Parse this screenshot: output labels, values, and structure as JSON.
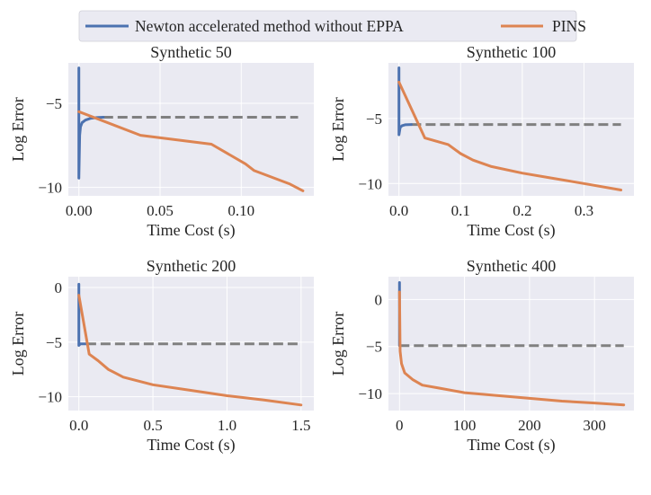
{
  "legend": {
    "placement": "top-center",
    "entries": [
      {
        "label": "Newton accelerated method without EPPA",
        "color": "#4c72b0"
      },
      {
        "label": "PINS",
        "color": "#dd8452"
      }
    ]
  },
  "colors": {
    "background": "#eaeaf2",
    "grid": "#ffffff",
    "reference": "#808080"
  },
  "chart_data": [
    {
      "type": "line",
      "title": "Synthetic 50",
      "xlabel": "Time Cost (s)",
      "ylabel": "Log Error",
      "xlim": [
        -0.0065,
        0.1447
      ],
      "ylim": [
        -10.5,
        -2.6
      ],
      "grid": true,
      "xticks": [
        0,
        0.05,
        0.1
      ],
      "xtick_labels": [
        "0.00",
        "0.05",
        "0.10"
      ],
      "yticks": [
        -5,
        -10
      ],
      "ytick_labels": [
        "−5",
        "−10"
      ],
      "series": [
        {
          "name": "Newton accelerated method without EPPA",
          "x": [
            0,
            0,
            0.0005,
            0.001,
            0.002,
            0.004,
            0.007,
            0.011,
            0.015
          ],
          "y": [
            -2.9,
            -9.45,
            -6.9,
            -6.4,
            -6.15,
            -6.0,
            -5.9,
            -5.85,
            -5.83
          ]
        },
        {
          "name": "PINS",
          "x": [
            0,
            0.038,
            0.0816,
            0.1026,
            0.108,
            0.13,
            0.138
          ],
          "y": [
            -5.5,
            -6.9,
            -7.43,
            -8.6,
            -9.0,
            -9.8,
            -10.2
          ]
        },
        {
          "style": "dashed",
          "x": [
            0.015,
            0.135
          ],
          "y": [
            -5.83,
            -5.83
          ]
        }
      ]
    },
    {
      "type": "line",
      "title": "Synthetic 100",
      "xlabel": "Time Cost (s)",
      "ylabel": "Log Error",
      "xlim": [
        -0.017,
        0.381
      ],
      "ylim": [
        -10.95,
        -0.72
      ],
      "grid": true,
      "xticks": [
        0,
        0.1,
        0.2,
        0.3
      ],
      "xtick_labels": [
        "0.0",
        "0.1",
        "0.2",
        "0.3"
      ],
      "yticks": [
        -5,
        -10
      ],
      "ytick_labels": [
        "−5",
        "−10"
      ],
      "series": [
        {
          "name": "Newton accelerated method without EPPA",
          "x": [
            0,
            0,
            0.002,
            0.005,
            0.01,
            0.02
          ],
          "y": [
            -1.1,
            -6.25,
            -5.7,
            -5.55,
            -5.48,
            -5.46
          ]
        },
        {
          "name": "PINS",
          "x": [
            0,
            0.042,
            0.08,
            0.1,
            0.12,
            0.15,
            0.2,
            0.25,
            0.3,
            0.36
          ],
          "y": [
            -2.2,
            -6.5,
            -7.0,
            -7.7,
            -8.2,
            -8.7,
            -9.2,
            -9.6,
            -10.0,
            -10.5
          ]
        },
        {
          "style": "dashed",
          "x": [
            0.02,
            0.36
          ],
          "y": [
            -5.46,
            -5.46
          ]
        }
      ]
    },
    {
      "type": "line",
      "title": "Synthetic 200",
      "xlabel": "Time Cost (s)",
      "ylabel": "Log Error",
      "xlim": [
        -0.071,
        1.586
      ],
      "ylim": [
        -11.26,
        0.99
      ],
      "grid": true,
      "xticks": [
        0,
        0.5,
        1.0,
        1.5
      ],
      "xtick_labels": [
        "0.0",
        "0.5",
        "1.0",
        "1.5"
      ],
      "yticks": [
        0,
        -5,
        -10
      ],
      "ytick_labels": [
        "0",
        "−5",
        "−10"
      ],
      "series": [
        {
          "name": "Newton accelerated method without EPPA",
          "x": [
            0,
            0,
            0.01,
            0.05
          ],
          "y": [
            0.3,
            -5.3,
            -5.15,
            -5.15
          ]
        },
        {
          "name": "PINS",
          "x": [
            0,
            0.07,
            0.13,
            0.2,
            0.3,
            0.5,
            0.75,
            1.0,
            1.25,
            1.5
          ],
          "y": [
            -0.7,
            -6.1,
            -6.7,
            -7.5,
            -8.2,
            -8.9,
            -9.4,
            -9.9,
            -10.3,
            -10.75
          ]
        },
        {
          "style": "dashed",
          "x": [
            0.05,
            1.5
          ],
          "y": [
            -5.15,
            -5.15
          ]
        }
      ]
    },
    {
      "type": "line",
      "title": "Synthetic 400",
      "xlabel": "Time Cost (s)",
      "ylabel": "Log Error",
      "xlim": [
        -17,
        360.6
      ],
      "ylim": [
        -11.8,
        2.42
      ],
      "grid": true,
      "xticks": [
        0,
        100,
        200,
        300
      ],
      "xtick_labels": [
        "0",
        "100",
        "200",
        "300"
      ],
      "yticks": [
        0,
        -5,
        -10
      ],
      "ytick_labels": [
        "0",
        "−5",
        "−10"
      ],
      "series": [
        {
          "name": "Newton accelerated method without EPPA",
          "x": [
            0,
            0
          ],
          "y": [
            1.8,
            -4.9
          ]
        },
        {
          "name": "PINS",
          "x": [
            0,
            1,
            3,
            8,
            20,
            35,
            60,
            100,
            150,
            200,
            250,
            300,
            345
          ],
          "y": [
            0.8,
            -5.5,
            -6.8,
            -7.8,
            -8.5,
            -9.1,
            -9.4,
            -9.9,
            -10.2,
            -10.5,
            -10.8,
            -11.0,
            -11.2
          ]
        },
        {
          "style": "dashed",
          "x": [
            0,
            345
          ],
          "y": [
            -4.9,
            -4.9
          ]
        }
      ]
    }
  ]
}
